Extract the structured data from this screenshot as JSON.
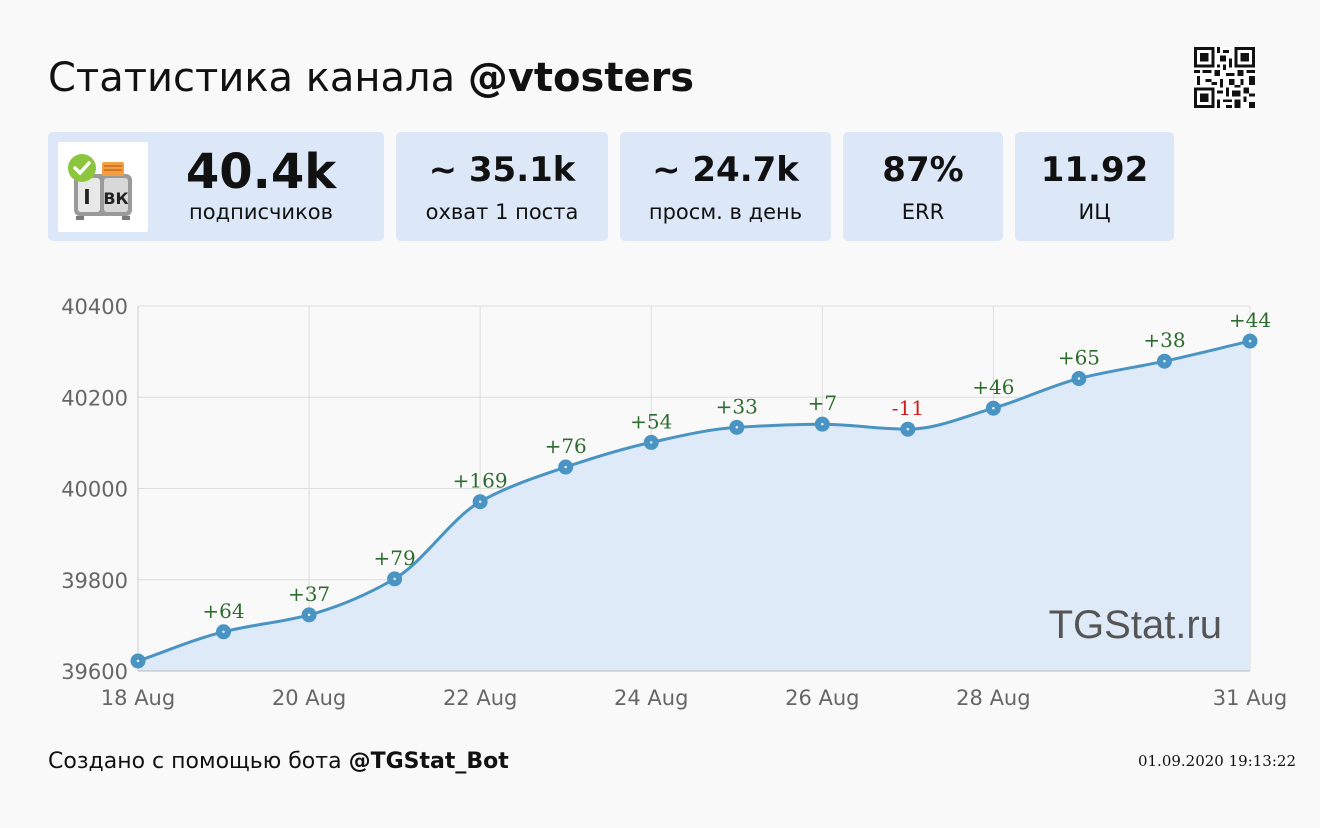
{
  "header": {
    "title_prefix": "Статистика канала ",
    "channel": "@vtosters"
  },
  "stats": [
    {
      "value": "40.4k",
      "label": "подписчиков"
    },
    {
      "value": "~ 35.1k",
      "label": "охват 1 поста"
    },
    {
      "value": "~ 24.7k",
      "label": "просм. в день"
    },
    {
      "value": "87%",
      "label": "ERR"
    },
    {
      "value": "11.92",
      "label": "ИЦ"
    }
  ],
  "avatar": {
    "text": "ВК"
  },
  "chart_data": {
    "type": "area",
    "x": [
      "18 Aug",
      "19 Aug",
      "20 Aug",
      "21 Aug",
      "22 Aug",
      "23 Aug",
      "24 Aug",
      "25 Aug",
      "26 Aug",
      "27 Aug",
      "28 Aug",
      "29 Aug",
      "30 Aug",
      "31 Aug"
    ],
    "values": [
      39622,
      39686,
      39723,
      39802,
      39971,
      40047,
      40101,
      40134,
      40141,
      40130,
      40176,
      40241,
      40279,
      40323
    ],
    "point_labels": [
      "",
      "+64",
      "+37",
      "+79",
      "+169",
      "+76",
      "+54",
      "+33",
      "+7",
      "-11",
      "+46",
      "+65",
      "+38",
      "+44"
    ],
    "x_tick_labels": [
      "18 Aug",
      "20 Aug",
      "22 Aug",
      "24 Aug",
      "26 Aug",
      "28 Aug",
      "31 Aug"
    ],
    "y_ticks": [
      39600,
      39800,
      40000,
      40200,
      40400
    ],
    "ylim": [
      39600,
      40400
    ],
    "grid": true,
    "watermark": "TGStat.ru",
    "colors": {
      "line": "#4a94c4",
      "fill": "#dde9f9",
      "positive_label": "#2e6b2e",
      "negative_label": "#cc1f1f"
    }
  },
  "footer": {
    "created_prefix": "Создано с помощью бота ",
    "bot": "@TGStat_Bot",
    "timestamp": "01.09.2020 19:13:22"
  }
}
